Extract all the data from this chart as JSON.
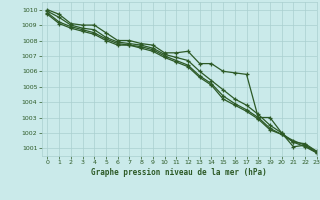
{
  "title": "Graphe pression niveau de la mer (hPa)",
  "bg_color": "#caeaea",
  "grid_color": "#aacfcf",
  "line_color": "#2d5a27",
  "xlim": [
    -0.5,
    23
  ],
  "ylim": [
    1000.5,
    1010.5
  ],
  "yticks": [
    1001,
    1002,
    1003,
    1004,
    1005,
    1006,
    1007,
    1008,
    1009,
    1010
  ],
  "xticks": [
    0,
    1,
    2,
    3,
    4,
    5,
    6,
    7,
    8,
    9,
    10,
    11,
    12,
    13,
    14,
    15,
    16,
    17,
    18,
    19,
    20,
    21,
    22,
    23
  ],
  "series": [
    [
      1010.0,
      1009.7,
      1009.1,
      1009.0,
      1009.0,
      1008.5,
      1008.0,
      1008.0,
      1007.8,
      1007.7,
      1007.2,
      1007.2,
      1007.3,
      1006.5,
      1006.5,
      1006.0,
      1005.9,
      1005.8,
      1003.0,
      1003.0,
      1002.0,
      1001.1,
      1001.2,
      1000.7
    ],
    [
      1009.9,
      1009.5,
      1009.0,
      1008.8,
      1008.7,
      1008.2,
      1007.9,
      1007.8,
      1007.7,
      1007.5,
      1007.1,
      1006.9,
      1006.7,
      1006.0,
      1005.4,
      1004.8,
      1004.2,
      1003.8,
      1003.2,
      1002.5,
      1002.0,
      1001.4,
      1001.3,
      1000.8
    ],
    [
      1009.8,
      1009.2,
      1008.9,
      1008.7,
      1008.5,
      1008.1,
      1007.8,
      1007.7,
      1007.6,
      1007.4,
      1007.0,
      1006.7,
      1006.4,
      1005.7,
      1005.2,
      1004.4,
      1003.9,
      1003.5,
      1003.0,
      1002.3,
      1001.9,
      1001.5,
      1001.2,
      1000.8
    ],
    [
      1009.7,
      1009.1,
      1008.8,
      1008.6,
      1008.4,
      1008.0,
      1007.7,
      1007.7,
      1007.5,
      1007.3,
      1006.9,
      1006.6,
      1006.3,
      1005.6,
      1005.1,
      1004.2,
      1003.8,
      1003.4,
      1002.9,
      1002.2,
      1001.9,
      1001.4,
      1001.1,
      1000.7
    ]
  ]
}
